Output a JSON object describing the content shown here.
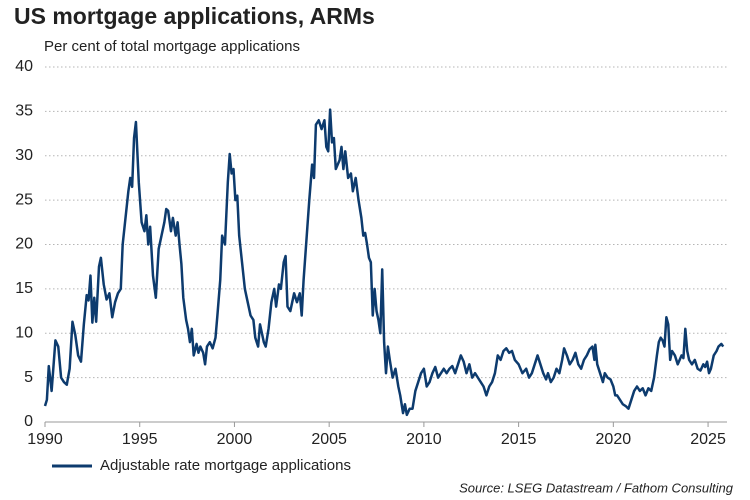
{
  "chart_data": {
    "type": "line",
    "title": "US mortgage applications, ARMs",
    "subtitle": "Per cent of total mortgage applications",
    "source": "Source: LSEG Datastream / Fathom Consulting",
    "legend": "bottom-left",
    "grid": true,
    "xlim": [
      1990,
      2026
    ],
    "ylim": [
      0,
      40
    ],
    "xticks": [
      1990,
      1995,
      2000,
      2005,
      2010,
      2015,
      2020,
      2025
    ],
    "yticks": [
      0,
      5,
      10,
      15,
      20,
      25,
      30,
      35,
      40
    ],
    "x": [
      1990.0,
      1990.1,
      1990.2,
      1990.35,
      1990.55,
      1990.7,
      1990.85,
      1991.0,
      1991.15,
      1991.3,
      1991.45,
      1991.6,
      1991.75,
      1991.9,
      1992.05,
      1992.2,
      1992.3,
      1992.4,
      1992.5,
      1992.6,
      1992.7,
      1992.85,
      1992.95,
      1993.1,
      1993.25,
      1993.4,
      1993.55,
      1993.7,
      1993.85,
      1994.0,
      1994.1,
      1994.25,
      1994.4,
      1994.5,
      1994.6,
      1994.7,
      1994.8,
      1994.95,
      1995.1,
      1995.25,
      1995.35,
      1995.45,
      1995.55,
      1995.7,
      1995.85,
      1996.0,
      1996.15,
      1996.3,
      1996.4,
      1996.5,
      1996.65,
      1996.75,
      1996.9,
      1997.0,
      1997.1,
      1997.2,
      1997.3,
      1997.45,
      1997.55,
      1997.65,
      1997.75,
      1997.85,
      1998.0,
      1998.1,
      1998.2,
      1998.35,
      1998.45,
      1998.55,
      1998.7,
      1998.85,
      1999.0,
      1999.1,
      1999.25,
      1999.35,
      1999.5,
      1999.65,
      1999.75,
      1999.85,
      1999.95,
      2000.05,
      2000.15,
      2000.25,
      2000.4,
      2000.55,
      2000.7,
      2000.85,
      2001.0,
      2001.1,
      2001.25,
      2001.35,
      2001.45,
      2001.55,
      2001.65,
      2001.8,
      2001.95,
      2002.1,
      2002.2,
      2002.35,
      2002.45,
      2002.6,
      2002.7,
      2002.8,
      2002.95,
      2003.05,
      2003.15,
      2003.3,
      2003.45,
      2003.55,
      2003.65,
      2003.75,
      2003.85,
      2003.95,
      2004.1,
      2004.2,
      2004.3,
      2004.45,
      2004.6,
      2004.75,
      2004.85,
      2004.95,
      2005.05,
      2005.15,
      2005.25,
      2005.35,
      2005.45,
      2005.55,
      2005.65,
      2005.75,
      2005.85,
      2006.0,
      2006.15,
      2006.25,
      2006.4,
      2006.55,
      2006.7,
      2006.8,
      2006.9,
      2007.0,
      2007.1,
      2007.2,
      2007.3,
      2007.4,
      2007.5,
      2007.6,
      2007.7,
      2007.8,
      2007.9,
      2008.0,
      2008.1,
      2008.2,
      2008.35,
      2008.5,
      2008.65,
      2008.75,
      2008.9,
      2009.0,
      2009.1,
      2009.25,
      2009.4,
      2009.55,
      2009.7,
      2009.85,
      2010.0,
      2010.15,
      2010.3,
      2010.45,
      2010.6,
      2010.75,
      2010.9,
      2011.05,
      2011.2,
      2011.35,
      2011.5,
      2011.65,
      2011.8,
      2011.95,
      2012.1,
      2012.25,
      2012.4,
      2012.55,
      2012.7,
      2012.85,
      2013.0,
      2013.15,
      2013.3,
      2013.45,
      2013.6,
      2013.75,
      2013.9,
      2014.05,
      2014.2,
      2014.35,
      2014.5,
      2014.65,
      2014.8,
      2015.0,
      2015.2,
      2015.4,
      2015.55,
      2015.7,
      2015.85,
      2016.0,
      2016.15,
      2016.3,
      2016.45,
      2016.55,
      2016.7,
      2016.85,
      2017.0,
      2017.15,
      2017.3,
      2017.4,
      2017.55,
      2017.7,
      2017.85,
      2018.0,
      2018.15,
      2018.3,
      2018.45,
      2018.6,
      2018.75,
      2018.9,
      2019.0,
      2019.05,
      2019.15,
      2019.3,
      2019.45,
      2019.55,
      2019.7,
      2019.85,
      2020.0,
      2020.1,
      2020.2,
      2020.35,
      2020.5,
      2020.65,
      2020.8,
      2020.95,
      2021.1,
      2021.25,
      2021.4,
      2021.55,
      2021.7,
      2021.85,
      2022.0,
      2022.15,
      2022.3,
      2022.4,
      2022.5,
      2022.6,
      2022.7,
      2022.8,
      2022.9,
      2023.0,
      2023.1,
      2023.25,
      2023.4,
      2023.5,
      2023.6,
      2023.7,
      2023.8,
      2023.9,
      2024.0,
      2024.15,
      2024.3,
      2024.45,
      2024.6,
      2024.75,
      2024.85,
      2024.95,
      2025.05,
      2025.15,
      2025.3,
      2025.45,
      2025.55,
      2025.7,
      2025.8
    ],
    "series": [
      {
        "name": "Adjustable rate mortgage applications",
        "color": "#0d3b6e",
        "values": [
          1.8,
          2.5,
          6.3,
          3.5,
          9.2,
          8.5,
          5.0,
          4.5,
          4.2,
          6.0,
          11.3,
          9.8,
          7.5,
          6.8,
          11.0,
          14.3,
          13.7,
          16.5,
          11.2,
          14.0,
          11.3,
          17.5,
          18.5,
          15.5,
          13.8,
          14.5,
          11.8,
          13.5,
          14.5,
          15.0,
          20.0,
          23.0,
          26.0,
          27.5,
          26.5,
          32.0,
          33.8,
          27.0,
          22.5,
          21.5,
          23.3,
          20.0,
          22.0,
          16.5,
          14.0,
          19.5,
          21.0,
          22.5,
          24.0,
          23.8,
          21.5,
          23.0,
          21.0,
          22.5,
          20.0,
          17.8,
          14.0,
          11.5,
          10.5,
          9.0,
          10.5,
          7.5,
          8.8,
          7.8,
          8.5,
          7.8,
          6.5,
          8.5,
          9.0,
          8.3,
          9.5,
          12.0,
          16.0,
          21.0,
          20.0,
          27.0,
          30.2,
          28.0,
          28.5,
          25.0,
          25.5,
          21.0,
          18.0,
          15.0,
          13.5,
          12.0,
          11.5,
          9.5,
          8.5,
          11.0,
          10.0,
          9.0,
          8.5,
          10.5,
          13.5,
          15.0,
          13.0,
          15.5,
          15.0,
          18.0,
          18.7,
          13.0,
          12.5,
          13.5,
          14.5,
          13.5,
          14.5,
          12.0,
          16.0,
          19.0,
          22.0,
          25.0,
          29.0,
          27.5,
          33.5,
          34.0,
          33.0,
          34.0,
          31.0,
          30.5,
          35.2,
          31.5,
          32.0,
          28.5,
          29.0,
          29.5,
          31.0,
          28.5,
          30.5,
          27.5,
          28.0,
          26.0,
          27.5,
          25.0,
          23.0,
          21.0,
          21.3,
          20.0,
          18.5,
          18.0,
          12.0,
          15.0,
          12.5,
          11.5,
          10.0,
          17.2,
          9.0,
          5.5,
          8.5,
          7.0,
          5.0,
          6.0,
          4.0,
          3.0,
          1.0,
          2.0,
          0.8,
          1.5,
          1.5,
          3.5,
          4.5,
          5.5,
          6.0,
          4.0,
          4.5,
          5.5,
          6.2,
          5.0,
          5.5,
          6.0,
          5.5,
          6.0,
          6.3,
          5.5,
          6.5,
          7.5,
          6.8,
          5.5,
          6.5,
          5.0,
          5.5,
          5.0,
          4.5,
          4.0,
          3.0,
          4.0,
          4.5,
          5.5,
          7.5,
          7.0,
          8.0,
          8.3,
          7.8,
          8.0,
          7.0,
          6.5,
          5.5,
          6.0,
          5.0,
          5.5,
          6.5,
          7.5,
          6.5,
          5.5,
          4.8,
          5.5,
          4.5,
          5.0,
          6.0,
          5.5,
          7.0,
          8.3,
          7.5,
          6.5,
          7.0,
          7.8,
          6.5,
          6.0,
          7.0,
          7.5,
          8.2,
          8.5,
          7.0,
          8.7,
          6.5,
          5.5,
          4.5,
          5.5,
          5.0,
          4.8,
          4.0,
          3.0,
          3.0,
          2.5,
          2.0,
          1.8,
          1.5,
          2.5,
          3.5,
          4.0,
          3.5,
          3.8,
          3.0,
          3.8,
          3.5,
          5.0,
          7.5,
          9.0,
          9.5,
          9.2,
          8.5,
          11.8,
          11.0,
          7.0,
          8.0,
          7.5,
          6.5,
          7.0,
          7.5,
          7.2,
          10.5,
          8.0,
          7.0,
          6.5,
          7.0,
          6.0,
          5.8,
          6.5,
          6.2,
          6.8,
          5.5,
          6.0,
          7.5,
          8.0,
          8.5,
          8.8,
          8.5
        ]
      }
    ]
  }
}
